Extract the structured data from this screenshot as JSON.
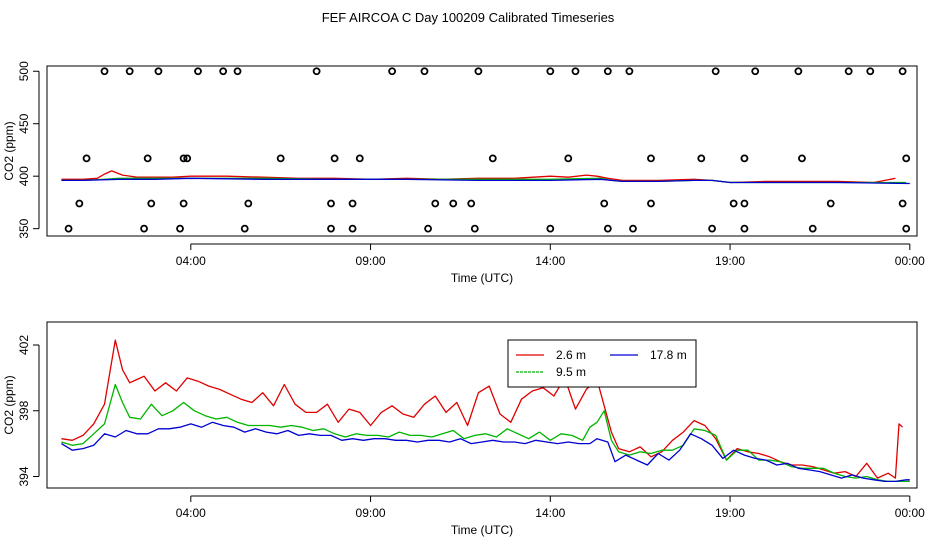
{
  "title": "FEF AIRCOA C  Day 100209  Calibrated Timeseries",
  "colors": {
    "red": "#e00000",
    "green": "#00b400",
    "blue": "#0000d0",
    "axis": "#000000"
  },
  "chart_data": [
    {
      "type": "line",
      "name": "top-panel",
      "xlabel": "Time (UTC)",
      "ylabel": "CO2 (ppm)",
      "xlim": [
        0.0,
        24.2
      ],
      "ylim": [
        343,
        505
      ],
      "xticks": [
        4,
        9,
        14,
        19,
        24
      ],
      "xtick_labels": [
        "04:00",
        "09:00",
        "14:00",
        "19:00",
        "00:00"
      ],
      "yticks": [
        350,
        400,
        450,
        500
      ],
      "ytick_labels": [
        "350",
        "400",
        "450",
        "500"
      ],
      "calibration_points": {
        "x": [
          1.6,
          3.1,
          5.3,
          7.5,
          10.5,
          14.0,
          16.2,
          18.6,
          22.3,
          23.8,
          2.3,
          4.2,
          4.9,
          9.6,
          12.0,
          14.7,
          15.6,
          19.7,
          20.9,
          22.9,
          1.1,
          2.8,
          3.8,
          3.9,
          6.5,
          8.0,
          8.7,
          12.4,
          14.5,
          16.8,
          18.2,
          19.4,
          21.0,
          23.9,
          0.9,
          2.9,
          3.8,
          5.6,
          7.9,
          8.5,
          10.8,
          11.3,
          11.8,
          15.5,
          16.8,
          19.1,
          19.4,
          21.8,
          23.8,
          0.6,
          2.7,
          3.7,
          5.5,
          7.9,
          8.5,
          10.6,
          11.9,
          14.0,
          15.6,
          16.3,
          18.5,
          19.4,
          21.3,
          23.9
        ],
        "y": [
          500,
          500,
          500,
          500,
          500,
          500,
          500,
          500,
          500,
          500,
          500,
          500,
          500,
          500,
          500,
          500,
          500,
          500,
          500,
          500,
          417,
          417,
          417,
          417,
          417,
          417,
          417,
          417,
          417,
          417,
          417,
          417,
          417,
          417,
          374,
          374,
          374,
          374,
          374,
          374,
          374,
          374,
          374,
          374,
          374,
          374,
          374,
          374,
          374,
          350,
          350,
          350,
          350,
          350,
          350,
          350,
          350,
          350,
          350,
          350,
          350,
          350,
          350,
          350
        ]
      },
      "series": [
        {
          "name": "2.6 m",
          "color": "red",
          "x": [
            0.4,
            1.0,
            1.4,
            1.6,
            1.8,
            2.1,
            2.5,
            3.0,
            3.5,
            4.0,
            5.0,
            6.0,
            7.0,
            8.0,
            9.0,
            10.0,
            11.0,
            12.0,
            13.0,
            14.0,
            14.5,
            15.0,
            15.3,
            15.6,
            16.0,
            17.0,
            18.0,
            18.5,
            19.0,
            20.0,
            21.0,
            22.0,
            23.0,
            23.6
          ],
          "values": [
            397,
            397,
            398,
            402,
            405,
            401,
            399,
            399,
            399,
            400,
            400,
            399,
            398,
            398,
            397,
            398,
            397,
            398,
            398,
            400,
            399,
            401,
            400,
            398,
            396,
            396,
            397,
            396,
            394,
            395,
            395,
            395,
            394,
            398
          ]
        },
        {
          "name": "9.5 m",
          "color": "green",
          "x": [
            0.4,
            1.0,
            1.6,
            2.0,
            3.0,
            4.0,
            6.0,
            8.0,
            10.0,
            12.0,
            14.0,
            15.4,
            15.7,
            16.0,
            17.0,
            18.0,
            18.5,
            19.0,
            20.0,
            22.0,
            23.9
          ],
          "values": [
            396,
            396,
            397,
            398,
            398,
            398,
            398,
            397,
            397,
            397,
            397,
            398,
            396,
            395,
            395,
            396,
            396,
            394,
            394,
            394,
            394
          ]
        },
        {
          "name": "17.8 m",
          "color": "blue",
          "x": [
            0.4,
            1.0,
            2.0,
            3.0,
            4.0,
            6.0,
            8.0,
            10.0,
            12.0,
            14.0,
            15.4,
            16.0,
            17.0,
            18.0,
            18.5,
            19.0,
            20.0,
            22.0,
            24.0
          ],
          "values": [
            396,
            396,
            397,
            397,
            398,
            397,
            397,
            397,
            396,
            396,
            397,
            395,
            395,
            396,
            396,
            394,
            394,
            394,
            393
          ]
        }
      ]
    },
    {
      "type": "line",
      "name": "bottom-panel",
      "xlabel": "Time (UTC)",
      "ylabel": "CO2 (ppm)",
      "xlim": [
        0.0,
        24.2
      ],
      "ylim": [
        393.3,
        403.4
      ],
      "xticks": [
        4,
        9,
        14,
        19,
        24
      ],
      "xtick_labels": [
        "04:00",
        "09:00",
        "14:00",
        "19:00",
        "00:00"
      ],
      "yticks": [
        394,
        398,
        402
      ],
      "ytick_labels": [
        "394",
        "398",
        "402"
      ],
      "legend": {
        "position": "top-right-inset",
        "entries": [
          "2.6 m",
          "9.5 m",
          "17.8 m"
        ]
      },
      "series": [
        {
          "name": "2.6 m",
          "color": "red",
          "x": [
            0.4,
            0.7,
            1.0,
            1.3,
            1.6,
            1.9,
            2.1,
            2.3,
            2.5,
            2.7,
            3.0,
            3.3,
            3.6,
            3.9,
            4.2,
            4.5,
            4.8,
            5.1,
            5.4,
            5.7,
            6.0,
            6.3,
            6.6,
            6.9,
            7.2,
            7.5,
            7.8,
            8.1,
            8.4,
            8.7,
            9.0,
            9.3,
            9.6,
            9.9,
            10.2,
            10.5,
            10.8,
            11.1,
            11.4,
            11.7,
            12.0,
            12.3,
            12.6,
            12.9,
            13.2,
            13.5,
            13.8,
            14.1,
            14.4,
            14.7,
            15.0,
            15.3,
            15.5,
            15.7,
            15.9,
            16.2,
            16.5,
            16.8,
            17.1,
            17.4,
            17.7,
            18.0,
            18.3,
            18.6,
            18.9,
            19.2,
            19.5,
            19.8,
            20.1,
            20.4,
            20.7,
            21.0,
            21.3,
            21.6,
            21.9,
            22.2,
            22.5,
            22.8,
            23.1,
            23.4,
            23.6,
            23.7,
            23.8
          ],
          "values": [
            396.3,
            396.2,
            396.5,
            397.2,
            398.4,
            402.3,
            400.5,
            399.7,
            399.9,
            400.1,
            399.2,
            399.7,
            399.2,
            400.0,
            399.8,
            399.5,
            399.3,
            399.0,
            398.7,
            398.5,
            399.1,
            398.3,
            399.6,
            398.4,
            397.9,
            397.9,
            398.4,
            397.3,
            398.1,
            397.9,
            397.1,
            397.9,
            398.3,
            397.8,
            397.6,
            398.4,
            398.9,
            397.9,
            398.5,
            397.1,
            399.1,
            399.5,
            397.8,
            397.3,
            398.7,
            399.2,
            399.4,
            398.9,
            400.0,
            398.1,
            399.3,
            399.9,
            398.3,
            396.7,
            395.7,
            395.5,
            395.8,
            395.2,
            395.5,
            396.2,
            396.7,
            397.4,
            397.1,
            396.3,
            395.0,
            395.7,
            395.5,
            395.4,
            395.2,
            394.9,
            394.7,
            394.7,
            394.6,
            394.4,
            394.2,
            394.3,
            394.0,
            394.8,
            393.9,
            394.2,
            393.9,
            397.2,
            397.0
          ]
        },
        {
          "name": "9.5 m",
          "color": "green",
          "x": [
            0.4,
            0.7,
            1.0,
            1.3,
            1.6,
            1.9,
            2.1,
            2.3,
            2.6,
            2.9,
            3.2,
            3.5,
            3.8,
            4.1,
            4.4,
            4.7,
            5.0,
            5.3,
            5.6,
            5.9,
            6.2,
            6.5,
            6.8,
            7.1,
            7.4,
            7.7,
            8.0,
            8.3,
            8.6,
            8.9,
            9.2,
            9.5,
            9.8,
            10.1,
            10.4,
            10.7,
            11.0,
            11.3,
            11.6,
            11.9,
            12.2,
            12.5,
            12.8,
            13.1,
            13.4,
            13.7,
            14.0,
            14.3,
            14.6,
            14.9,
            15.1,
            15.3,
            15.5,
            15.7,
            15.9,
            16.2,
            16.5,
            16.8,
            17.1,
            17.4,
            17.7,
            18.0,
            18.3,
            18.6,
            18.9,
            19.2,
            19.5,
            19.8,
            20.1,
            20.4,
            20.7,
            21.0,
            21.3,
            21.6,
            21.9,
            22.2,
            22.5,
            22.8,
            23.1,
            23.4,
            23.7,
            24.0
          ],
          "values": [
            396.1,
            395.9,
            396.0,
            396.6,
            397.2,
            399.6,
            398.5,
            397.6,
            397.5,
            398.4,
            397.7,
            398.0,
            398.5,
            398.0,
            397.7,
            397.5,
            397.6,
            397.3,
            397.1,
            397.1,
            397.1,
            397.0,
            397.1,
            397.0,
            396.8,
            396.9,
            396.6,
            396.4,
            396.6,
            396.5,
            396.5,
            396.4,
            396.7,
            396.5,
            396.5,
            396.4,
            396.6,
            396.8,
            396.3,
            396.5,
            396.6,
            396.4,
            396.9,
            396.6,
            396.3,
            396.7,
            396.2,
            396.6,
            396.5,
            396.2,
            397.0,
            397.3,
            398.0,
            396.2,
            395.5,
            395.3,
            395.5,
            395.4,
            395.6,
            395.6,
            395.9,
            396.9,
            396.8,
            396.5,
            395.0,
            395.6,
            395.6,
            395.0,
            395.0,
            394.9,
            394.6,
            394.5,
            394.5,
            394.5,
            394.2,
            394.0,
            393.9,
            394.0,
            393.8,
            393.7,
            393.7,
            393.7
          ]
        },
        {
          "name": "17.8 m",
          "color": "blue",
          "x": [
            0.4,
            0.7,
            1.0,
            1.3,
            1.6,
            1.9,
            2.2,
            2.5,
            2.8,
            3.1,
            3.4,
            3.7,
            4.0,
            4.3,
            4.6,
            4.9,
            5.2,
            5.5,
            5.8,
            6.1,
            6.4,
            6.7,
            7.0,
            7.3,
            7.6,
            7.9,
            8.2,
            8.5,
            8.8,
            9.1,
            9.4,
            9.7,
            10.0,
            10.3,
            10.6,
            10.9,
            11.2,
            11.5,
            11.8,
            12.1,
            12.4,
            12.7,
            13.0,
            13.3,
            13.6,
            13.9,
            14.2,
            14.5,
            14.8,
            15.1,
            15.3,
            15.6,
            15.8,
            16.1,
            16.4,
            16.7,
            17.0,
            17.3,
            17.6,
            17.9,
            18.2,
            18.5,
            18.8,
            19.1,
            19.4,
            19.7,
            20.0,
            20.3,
            20.6,
            20.9,
            21.2,
            21.5,
            21.8,
            22.1,
            22.4,
            22.7,
            23.0,
            23.3,
            23.6,
            23.9,
            24.0
          ],
          "values": [
            396.0,
            395.6,
            395.7,
            395.9,
            396.6,
            396.4,
            396.8,
            396.6,
            396.6,
            396.9,
            396.9,
            397.0,
            397.2,
            397.0,
            397.3,
            397.1,
            397.0,
            396.7,
            396.9,
            396.7,
            396.6,
            396.8,
            396.5,
            396.6,
            396.5,
            396.5,
            396.2,
            396.3,
            396.2,
            396.3,
            396.3,
            396.2,
            396.2,
            396.1,
            396.2,
            396.2,
            396.1,
            396.3,
            396.0,
            396.1,
            396.2,
            396.1,
            396.1,
            396.0,
            396.2,
            396.1,
            396.0,
            396.1,
            396.0,
            396.0,
            396.3,
            396.1,
            394.9,
            395.3,
            395.0,
            394.7,
            395.4,
            395.0,
            395.6,
            396.6,
            396.3,
            395.9,
            395.1,
            395.6,
            395.3,
            395.1,
            395.0,
            394.7,
            394.8,
            394.5,
            394.4,
            394.3,
            394.1,
            393.9,
            394.1,
            393.9,
            393.8,
            393.7,
            393.7,
            393.8,
            393.8
          ]
        }
      ]
    }
  ]
}
